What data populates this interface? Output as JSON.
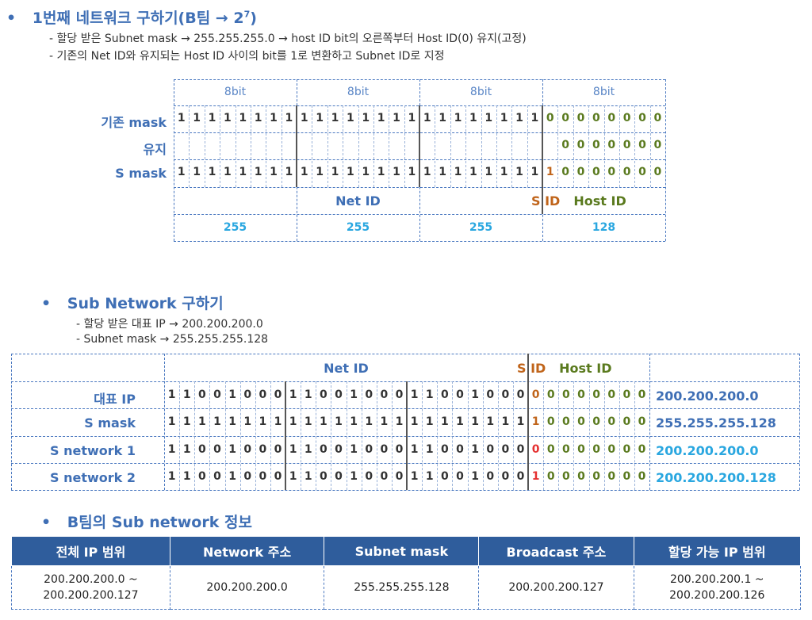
{
  "s1": {
    "bullet": "•",
    "title": "1번째 네트워크 구하기(B팀 → 2",
    "title_sup": "7",
    "title_end": ")",
    "notes": [
      "-   할당 받은 Subnet mask → 255.255.255.0 → host ID bit의 오른쪽부터 Host ID(0) 유지(고정)",
      "-   기존의 Net ID와 유지되는 Host ID 사이의 bit를 1로 변환하고 Subnet ID로 지정"
    ],
    "octet_header": [
      "8bit",
      "8bit",
      "8bit",
      "8bit"
    ],
    "rows": [
      {
        "label": "기존 mask",
        "bits": "11111111111111111111111100000000"
      },
      {
        "label": "유지",
        "bits": "                         0000000"
      },
      {
        "label": "S mask",
        "bits": "11111111111111111111111110000000"
      }
    ],
    "net_id": "Net ID",
    "s_id": "S ID",
    "host_id": "Host ID",
    "decimals": [
      "255",
      "255",
      "255",
      "128"
    ]
  },
  "s2": {
    "bullet": "•",
    "title": "Sub Network 구하기",
    "notes": [
      "-   할당 받은 대표 IP → 200.200.200.0",
      "-   Subnet mask → 255.255.255.128"
    ],
    "net_id": "Net ID",
    "s_id": "S ID",
    "host_id": "Host ID",
    "rows": [
      {
        "label": "대표 IP",
        "bits": "11001000110010001100100000000000",
        "ip": "200.200.200.0"
      },
      {
        "label": "S mask",
        "bits": "11111111111111111111111110000000",
        "ip": "255.255.255.128"
      },
      {
        "label": "S network 1",
        "bits": "11001000110010001100100000000000",
        "ip": "200.200.200.0"
      },
      {
        "label": "S network 2",
        "bits": "11001000110010001100100010000000",
        "ip": "200.200.200.128"
      }
    ]
  },
  "s3": {
    "bullet": "•",
    "title": "B팀의 Sub network 정보",
    "headers": [
      "전체 IP 범위",
      "Network 주소",
      "Subnet mask",
      "Broadcast 주소",
      "할당 가능 IP 범위"
    ],
    "row": [
      "200.200.200.0 ~\n200.200.200.127",
      "200.200.200.0",
      "255.255.255.128",
      "200.200.200.127",
      "200.200.200.1 ~\n200.200.200.126"
    ]
  },
  "colors": {
    "accent": "#3f6fb5",
    "header_bg": "#2f5d9c",
    "subnet_bit": "#c0641a",
    "host_bit": "#5a7a1e",
    "red_bit": "#e53030",
    "cyan": "#2aa7e0"
  }
}
